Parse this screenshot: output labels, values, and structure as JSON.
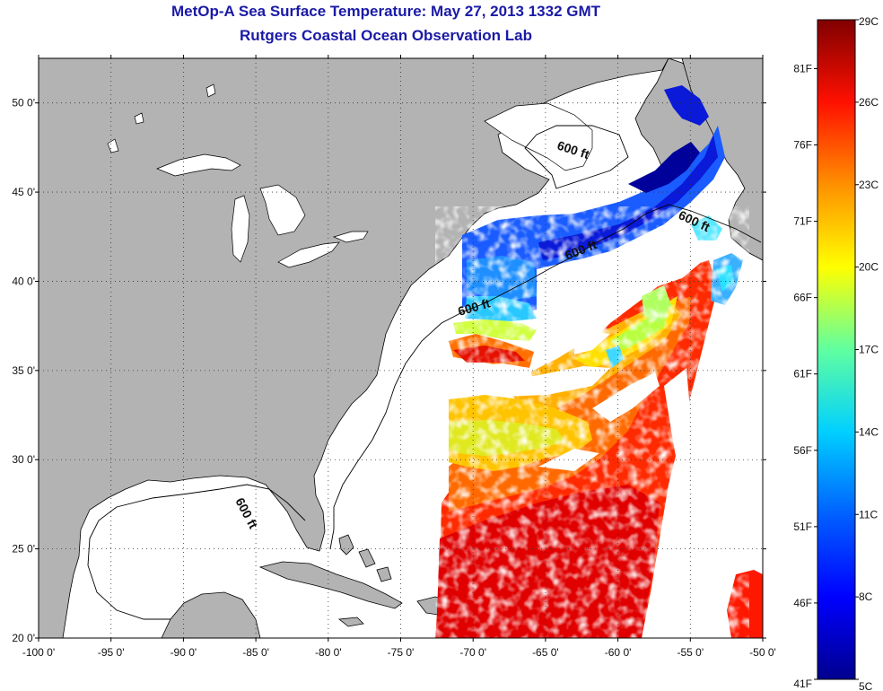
{
  "title": {
    "line1": "MetOp-A Sea Surface Temperature:  May 27, 2013 1332 GMT",
    "line2": "Rutgers Coastal Ocean Observation Lab"
  },
  "axes": {
    "x_ticks": [
      "-100 0'",
      "-95 0'",
      "-90 0'",
      "-85 0'",
      "-80 0'",
      "-75 0'",
      "-70 0'",
      "-65 0'",
      "-60 0'",
      "-55 0'",
      "-50 0'"
    ],
    "x_values": [
      -100,
      -95,
      -90,
      -85,
      -80,
      -75,
      -70,
      -65,
      -60,
      -55,
      -50
    ],
    "y_ticks": [
      "50 0'",
      "45 0'",
      "40 0'",
      "35 0'",
      "30 0'",
      "25 0'",
      "20 0'"
    ],
    "y_values": [
      50,
      45,
      40,
      35,
      30,
      25,
      20
    ],
    "xlim": [
      -100,
      -50
    ],
    "ylim": [
      20,
      52.5
    ],
    "grid": true
  },
  "contour_label": "600 ft",
  "colorbar": {
    "celsius_labels": [
      "29C",
      "26C",
      "23C",
      "20C",
      "17C",
      "14C",
      "11C",
      "8C",
      "5C"
    ],
    "celsius_values": [
      29,
      26,
      23,
      20,
      17,
      14,
      11,
      8,
      5
    ],
    "fahrenheit_labels": [
      "81F",
      "76F",
      "71F",
      "66F",
      "61F",
      "56F",
      "51F",
      "46F",
      "41F"
    ],
    "fahrenheit_values": [
      81,
      76,
      71,
      66,
      61,
      56,
      51,
      46,
      41
    ],
    "range_c": [
      5,
      29
    ],
    "colors": [
      "#00008f",
      "#0000ff",
      "#0080ff",
      "#00ffff",
      "#80ff80",
      "#ffff00",
      "#ff8000",
      "#ff0000",
      "#800000"
    ]
  },
  "colors": {
    "land": "#b3b3b3",
    "coast": "#000000",
    "title": "#1a1aa6",
    "grid": "#333333"
  }
}
